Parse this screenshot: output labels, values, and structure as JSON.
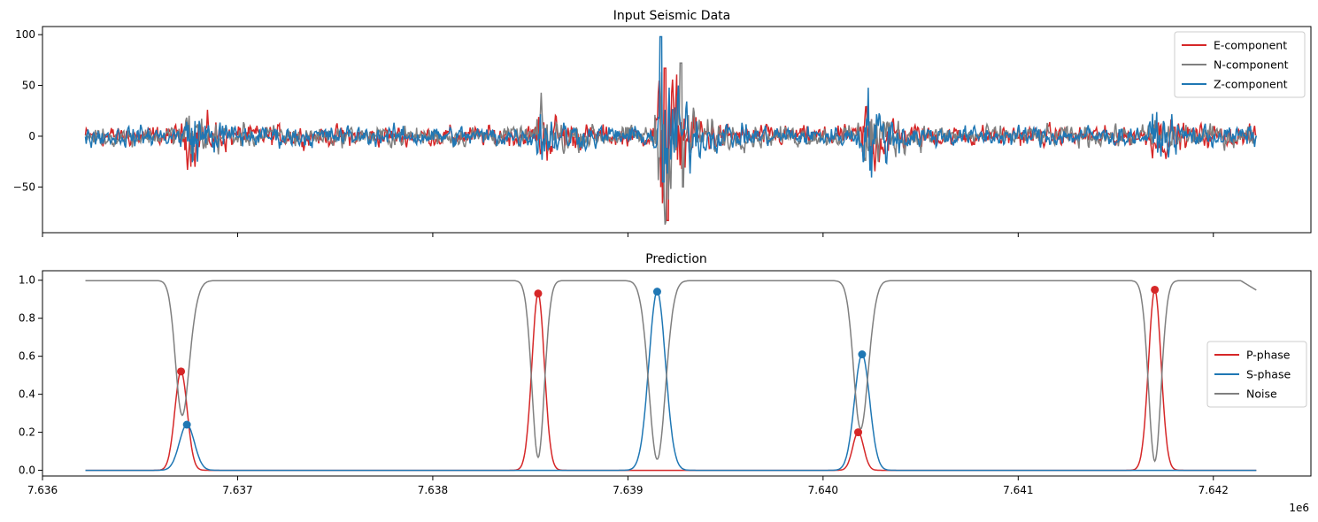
{
  "chart_data": [
    {
      "type": "line",
      "title": "Input Seismic Data",
      "xlabel": "",
      "ylabel": "",
      "xlim": [
        7636000,
        7642500
      ],
      "ylim": [
        -95,
        108
      ],
      "x_ticks": [
        7636000,
        7637000,
        7638000,
        7639000,
        7640000,
        7641000,
        7642000
      ],
      "x_tick_labels_visible": false,
      "y_ticks": [
        -50,
        0,
        50,
        100
      ],
      "y_tick_labels": [
        "−50",
        "0",
        "50",
        "100"
      ],
      "grid": false,
      "legend": "top-right",
      "x_range": [
        7636220,
        7642220
      ],
      "noise_amplitude": 6,
      "bursts": [
        {
          "x": 7636750,
          "amplitude": 15
        },
        {
          "x": 7638550,
          "amplitude": 14
        },
        {
          "x": 7639170,
          "amplitude": 55
        },
        {
          "x": 7640220,
          "amplitude": 25
        },
        {
          "x": 7641700,
          "amplitude": 10
        }
      ],
      "series": [
        {
          "name": "E-component",
          "color": "#d62728",
          "peak": {
            "x": 7639190,
            "max": 67,
            "min": -83
          }
        },
        {
          "name": "N-component",
          "color": "#7f7f7f",
          "peak": {
            "x": 7639270,
            "max": 72,
            "min": -50
          }
        },
        {
          "name": "Z-component",
          "color": "#1f77b4",
          "peak": {
            "x": 7639170,
            "max": 98,
            "min": -45
          }
        }
      ]
    },
    {
      "type": "line",
      "title": "Prediction",
      "xlabel": "",
      "ylabel": "",
      "xlim": [
        7636000,
        7642500
      ],
      "ylim": [
        -0.03,
        1.05
      ],
      "x_ticks": [
        7636000,
        7637000,
        7638000,
        7639000,
        7640000,
        7641000,
        7642000
      ],
      "x_tick_labels": [
        "7.636",
        "7.637",
        "7.638",
        "7.639",
        "7.640",
        "7.641",
        "7.642"
      ],
      "x_offset_label": "1e6",
      "y_ticks": [
        0.0,
        0.2,
        0.4,
        0.6,
        0.8,
        1.0
      ],
      "y_tick_labels": [
        "0.0",
        "0.2",
        "0.4",
        "0.6",
        "0.8",
        "1.0"
      ],
      "grid": false,
      "legend": "center-right",
      "x_range": [
        7636220,
        7642220
      ],
      "series": [
        {
          "name": "P-phase",
          "color": "#d62728",
          "peaks": [
            {
              "x": 7636710,
              "y": 0.52,
              "width": 45
            },
            {
              "x": 7638540,
              "y": 0.93,
              "width": 45
            },
            {
              "x": 7640180,
              "y": 0.2,
              "width": 40
            },
            {
              "x": 7641700,
              "y": 0.95,
              "width": 45
            }
          ]
        },
        {
          "name": "S-phase",
          "color": "#1f77b4",
          "peaks": [
            {
              "x": 7636740,
              "y": 0.24,
              "width": 55
            },
            {
              "x": 7639150,
              "y": 0.94,
              "width": 60
            },
            {
              "x": 7640200,
              "y": 0.61,
              "width": 55
            }
          ]
        },
        {
          "name": "Noise",
          "color": "#7f7f7f",
          "note": "1 - P - S"
        }
      ]
    }
  ]
}
